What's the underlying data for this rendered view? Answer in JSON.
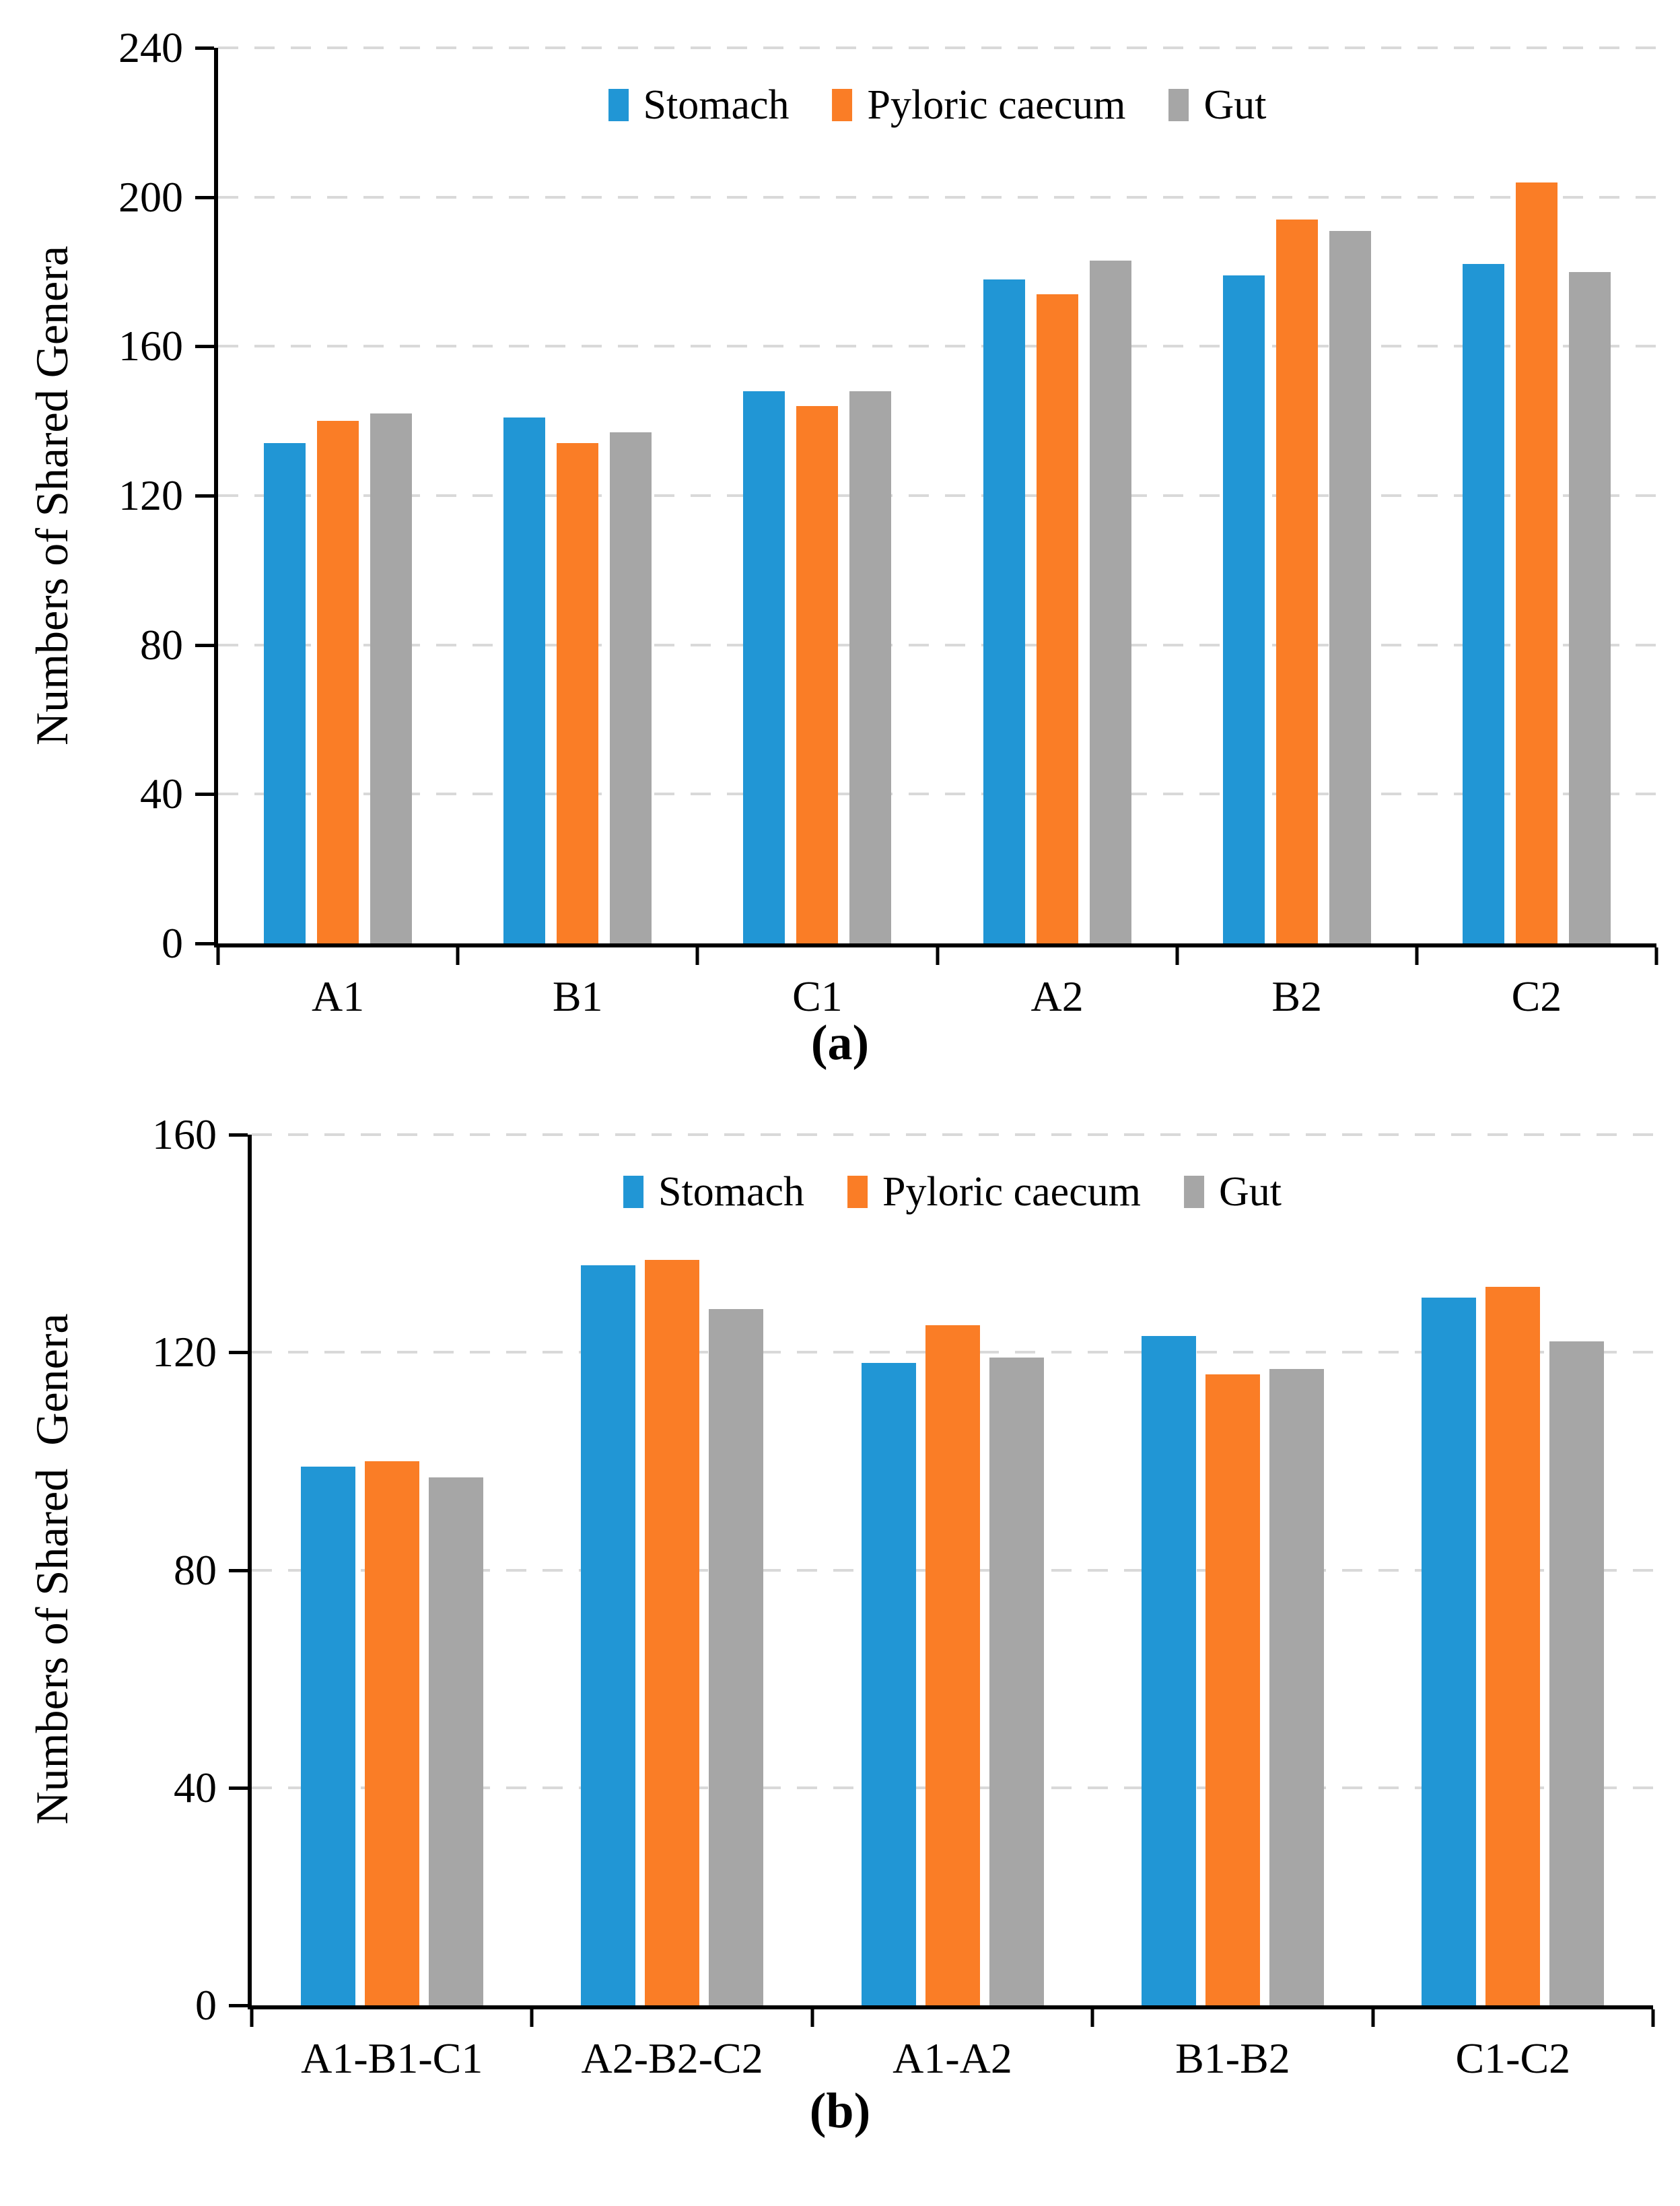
{
  "colors": {
    "stomach": "#2196D5",
    "pyloric_caecum": "#FA7D26",
    "gut": "#A6A6A6",
    "gridline": "#D9D9D9",
    "axis": "#000000"
  },
  "legend": {
    "items": [
      "Stomach",
      "Pyloric caecum",
      "Gut"
    ]
  },
  "chart_data": [
    {
      "id": "a",
      "type": "bar",
      "title": "",
      "xlabel": "",
      "ylabel": "Numbers of Shared Genera",
      "caption": "(a)",
      "ylim": [
        0,
        240
      ],
      "yticks": [
        0,
        40,
        80,
        120,
        160,
        200,
        240
      ],
      "grid": "horizontal-dashed",
      "legend_position": "top-center-inside",
      "categories": [
        "A1",
        "B1",
        "C1",
        "A2",
        "B2",
        "C2"
      ],
      "series": [
        {
          "name": "Stomach",
          "color_key": "stomach",
          "values": [
            134,
            141,
            148,
            178,
            179,
            182
          ]
        },
        {
          "name": "Pyloric caecum",
          "color_key": "pyloric_caecum",
          "values": [
            140,
            134,
            144,
            174,
            194,
            204
          ]
        },
        {
          "name": "Gut",
          "color_key": "gut",
          "values": [
            142,
            137,
            148,
            183,
            191,
            180
          ]
        }
      ]
    },
    {
      "id": "b",
      "type": "bar",
      "title": "",
      "xlabel": "",
      "ylabel": "Numbers of Shared  Genera",
      "caption": "(b)",
      "ylim": [
        0,
        160
      ],
      "yticks": [
        0,
        40,
        80,
        120,
        160
      ],
      "grid": "horizontal-dashed",
      "legend_position": "top-center-inside",
      "categories": [
        "A1-B1-C1",
        "A2-B2-C2",
        "A1-A2",
        "B1-B2",
        "C1-C2"
      ],
      "series": [
        {
          "name": "Stomach",
          "color_key": "stomach",
          "values": [
            99,
            136,
            118,
            123,
            130
          ]
        },
        {
          "name": "Pyloric caecum",
          "color_key": "pyloric_caecum",
          "values": [
            100,
            137,
            125,
            116,
            132
          ]
        },
        {
          "name": "Gut",
          "color_key": "gut",
          "values": [
            97,
            128,
            119,
            117,
            122
          ]
        }
      ]
    }
  ]
}
